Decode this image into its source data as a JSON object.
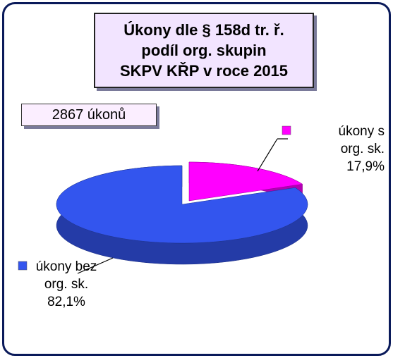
{
  "chart_data": {
    "type": "pie",
    "title": [
      "Úkony dle § 158d tr. ř.",
      "podíl org. skupin",
      "SKPV KŘP v roce 2015"
    ],
    "annotation": "2867 úkonů",
    "categories": [
      "úkony s org. sk.",
      "úkony bez org. sk."
    ],
    "values": [
      17.9,
      82.1
    ],
    "value_labels": [
      "17,9%",
      "82,1%"
    ],
    "colors": [
      "#ff00ff",
      "#3355ee"
    ]
  }
}
